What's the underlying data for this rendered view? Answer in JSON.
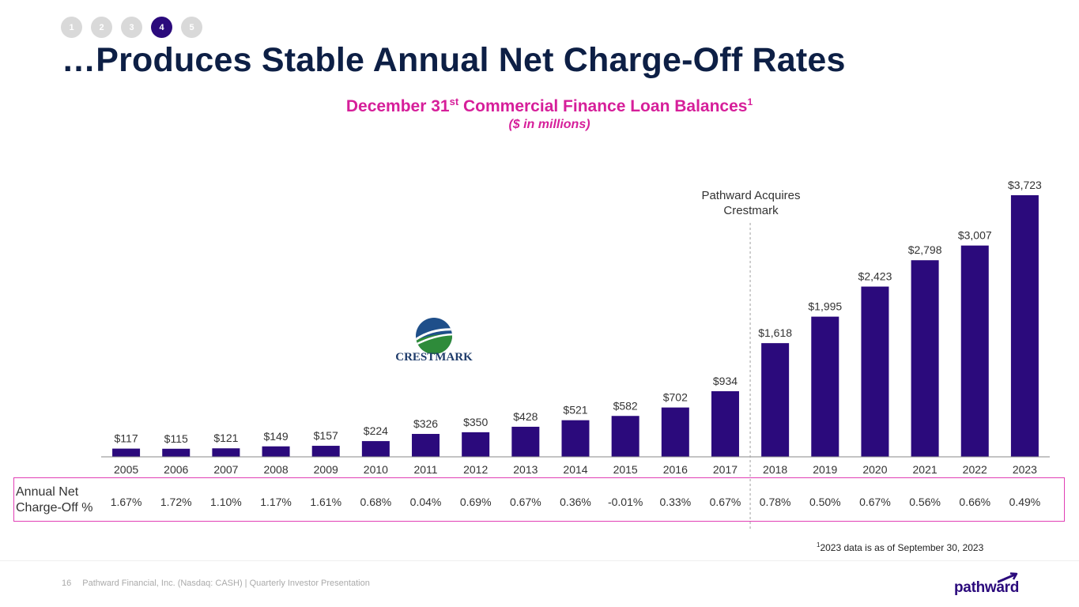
{
  "nav": {
    "steps": [
      "1",
      "2",
      "3",
      "4",
      "5"
    ],
    "active_index": 3
  },
  "title": "…Produces Stable Annual Net Charge-Off Rates",
  "subtitle": {
    "main": "December 31",
    "sup": "st",
    "rest": " Commercial Finance Loan Balances",
    "footnote_mark": "1"
  },
  "units": "($ in millions)",
  "annotation": {
    "line1": "Pathward Acquires",
    "line2": "Crestmark"
  },
  "logo": {
    "text": "CRESTMARK"
  },
  "nco": {
    "label_line1": "Annual Net",
    "label_line2": "Charge-Off %"
  },
  "footnote": {
    "mark": "1",
    "text": "2023 data is as of September 30, 2023"
  },
  "footer": {
    "page": "16",
    "text": "Pathward Financial, Inc. (Nasdaq: CASH) | Quarterly Investor Presentation"
  },
  "brand": {
    "name": "pathward"
  },
  "colors": {
    "bar": "#2b0a7c",
    "accent": "#d61f9a",
    "title": "#0d1f45"
  },
  "chart_data": {
    "type": "bar",
    "categories": [
      "2005",
      "2006",
      "2007",
      "2008",
      "2009",
      "2010",
      "2011",
      "2012",
      "2013",
      "2014",
      "2015",
      "2016",
      "2017",
      "2018",
      "2019",
      "2020",
      "2021",
      "2022",
      "2023"
    ],
    "values": [
      117,
      115,
      121,
      149,
      157,
      224,
      326,
      350,
      428,
      521,
      582,
      702,
      934,
      1618,
      1995,
      2423,
      2798,
      3007,
      3723
    ],
    "value_labels": [
      "$117",
      "$115",
      "$121",
      "$149",
      "$157",
      "$224",
      "$326",
      "$350",
      "$428",
      "$521",
      "$582",
      "$702",
      "$934",
      "$1,618",
      "$1,995",
      "$2,423",
      "$2,798",
      "$3,007",
      "$3,723"
    ],
    "net_charge_off_labels": [
      "1.67%",
      "1.72%",
      "1.10%",
      "1.17%",
      "1.61%",
      "0.68%",
      "0.04%",
      "0.69%",
      "0.67%",
      "0.36%",
      "-0.01%",
      "0.33%",
      "0.67%",
      "0.78%",
      "0.50%",
      "0.67%",
      "0.56%",
      "0.66%",
      "0.49%"
    ],
    "marker_between": [
      "2017",
      "2018"
    ],
    "title": "December 31st Commercial Finance Loan Balances",
    "ylabel": "",
    "xlabel": "",
    "grid": false
  }
}
